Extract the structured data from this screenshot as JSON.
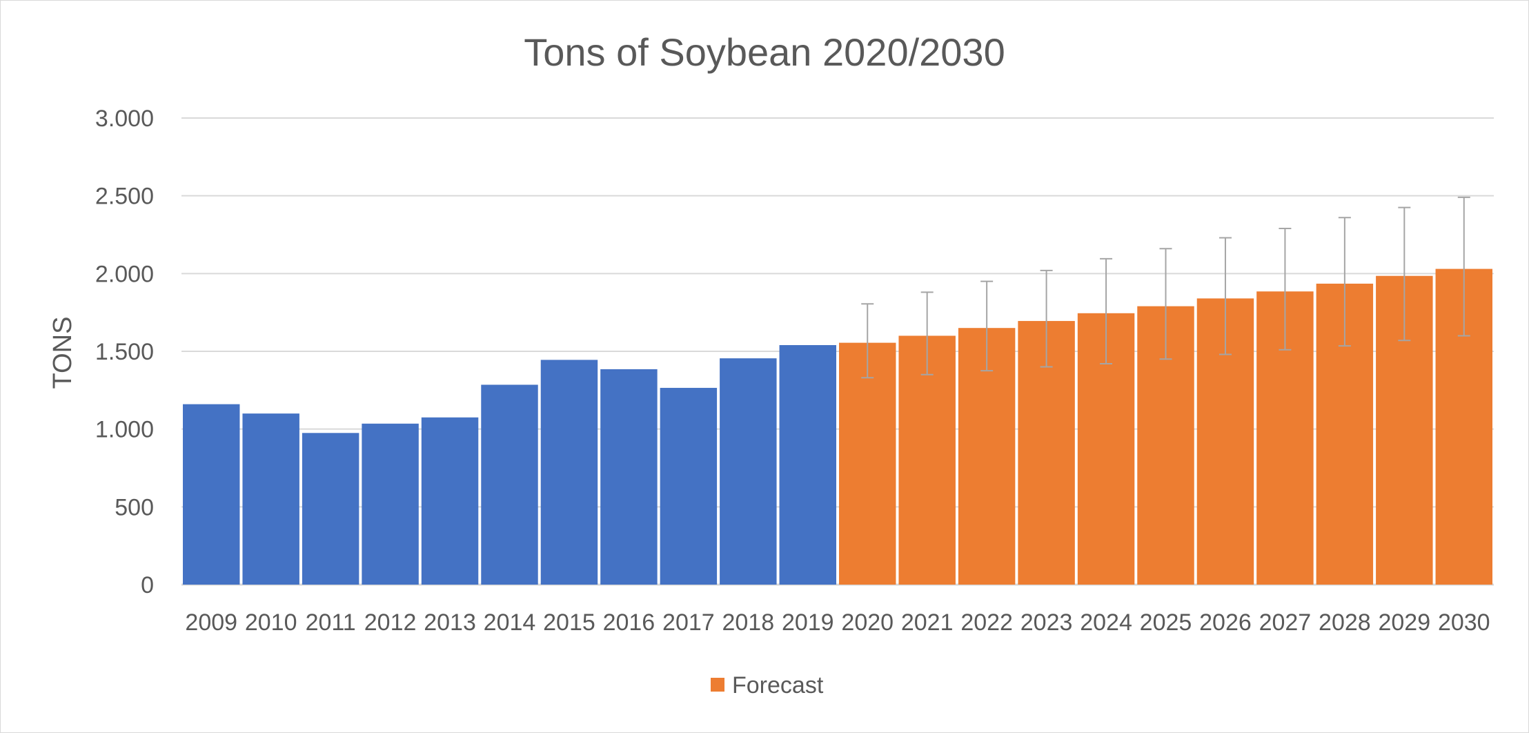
{
  "chart_data": {
    "type": "bar",
    "title": "Tons of Soybean 2020/2030",
    "xlabel": "",
    "ylabel": "TONS",
    "ylim": [
      0,
      3000
    ],
    "yticks": [
      0,
      500,
      1000,
      1500,
      2000,
      2500,
      3000
    ],
    "ytick_labels": [
      "0",
      "500",
      "1.000",
      "1.500",
      "2.000",
      "2.500",
      "3.000"
    ],
    "grid": true,
    "categories": [
      "2009",
      "2010",
      "2011",
      "2012",
      "2013",
      "2014",
      "2015",
      "2016",
      "2017",
      "2018",
      "2019",
      "2020",
      "2021",
      "2022",
      "2023",
      "2024",
      "2025",
      "2026",
      "2027",
      "2028",
      "2029",
      "2030"
    ],
    "series": [
      {
        "values": [
          1160,
          1100,
          975,
          1035,
          1075,
          1285,
          1445,
          1385,
          1265,
          1455,
          1540,
          null,
          null,
          null,
          null,
          null,
          null,
          null,
          null,
          null,
          null,
          null
        ],
        "color": "#4472c4"
      },
      {
        "name": "Forecast",
        "values": [
          null,
          null,
          null,
          null,
          null,
          null,
          null,
          null,
          null,
          null,
          null,
          1555,
          1600,
          1650,
          1695,
          1745,
          1790,
          1840,
          1885,
          1935,
          1985,
          2030
        ],
        "error_low": [
          null,
          null,
          null,
          null,
          null,
          null,
          null,
          null,
          null,
          null,
          null,
          1330,
          1350,
          1375,
          1400,
          1420,
          1450,
          1480,
          1510,
          1535,
          1570,
          1600
        ],
        "error_high": [
          null,
          null,
          null,
          null,
          null,
          null,
          null,
          null,
          null,
          null,
          null,
          1805,
          1880,
          1950,
          2020,
          2095,
          2160,
          2230,
          2290,
          2360,
          2425,
          2490
        ],
        "color": "#ed7d31"
      }
    ],
    "error_bar_color": "#a5a5a5",
    "grid_color": "#d9d9d9",
    "axis_color": "#d9d9d9",
    "legend": {
      "position": "bottom",
      "entries": [
        "Forecast"
      ]
    }
  }
}
